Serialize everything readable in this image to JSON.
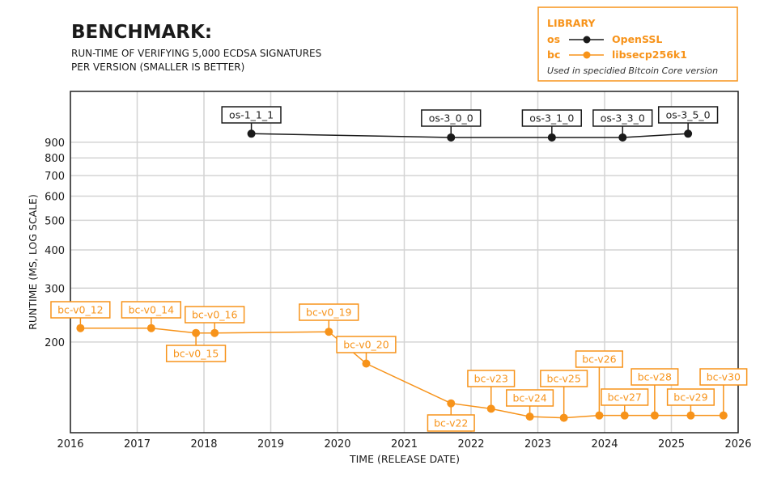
{
  "chart_data": {
    "type": "line",
    "title": "BENCHMARK:",
    "subtitle": [
      "RUN-TIME OF VERIFYING 5,000 ECDSA SIGNATURES",
      "PER VERSION (SMALLER IS BETTER)"
    ],
    "xlabel": "TIME (RELEASE DATE)",
    "ylabel": "RUNTIME (MS, LOG SCALE)",
    "xlim": [
      2016,
      2026
    ],
    "ylim": [
      101,
      1320
    ],
    "yscale": "log",
    "grid": true,
    "x_ticks": [
      "2016",
      "2017",
      "2018",
      "2019",
      "2020",
      "2021",
      "2022",
      "2023",
      "2024",
      "2025",
      "2026"
    ],
    "y_ticks": [
      "200",
      "300",
      "400",
      "500",
      "600",
      "700",
      "800",
      "900"
    ],
    "legend": {
      "position": "top-right",
      "title": "LIBRARY",
      "entries": [
        {
          "key": "os",
          "label": "OpenSSL",
          "color": "#1a1a1a"
        },
        {
          "key": "bc",
          "label": "libsecp256k1",
          "color": "#f7931a"
        }
      ],
      "note": "Used in specidied Bitcoin Core version"
    },
    "series": [
      {
        "name": "OpenSSL",
        "color": "#1a1a1a",
        "points": [
          {
            "label": "os-1_1_1",
            "x": 2018.71,
            "y": 960
          },
          {
            "label": "os-3_0_0",
            "x": 2021.7,
            "y": 933
          },
          {
            "label": "os-3_1_0",
            "x": 2023.21,
            "y": 933
          },
          {
            "label": "os-3_3_0",
            "x": 2024.27,
            "y": 933
          },
          {
            "label": "os-3_5_0",
            "x": 2025.25,
            "y": 960
          }
        ]
      },
      {
        "name": "libsecp256k1",
        "color": "#f7931a",
        "points": [
          {
            "label": "bc-v0_12",
            "x": 2016.15,
            "y": 222
          },
          {
            "label": "bc-v0_14",
            "x": 2017.21,
            "y": 222
          },
          {
            "label": "bc-v0_15",
            "x": 2017.88,
            "y": 214
          },
          {
            "label": "bc-v0_16",
            "x": 2018.16,
            "y": 214
          },
          {
            "label": "bc-v0_19",
            "x": 2019.87,
            "y": 216
          },
          {
            "label": "bc-v0_20",
            "x": 2020.43,
            "y": 170
          },
          {
            "label": "bc-v22",
            "x": 2021.7,
            "y": 126
          },
          {
            "label": "bc-v23",
            "x": 2022.3,
            "y": 121
          },
          {
            "label": "bc-v24",
            "x": 2022.88,
            "y": 114
          },
          {
            "label": "bc-v25",
            "x": 2023.39,
            "y": 113
          },
          {
            "label": "bc-v26",
            "x": 2023.92,
            "y": 115
          },
          {
            "label": "bc-v27",
            "x": 2024.3,
            "y": 115
          },
          {
            "label": "bc-v28",
            "x": 2024.75,
            "y": 115
          },
          {
            "label": "bc-v29",
            "x": 2025.29,
            "y": 115
          },
          {
            "label": "bc-v30",
            "x": 2025.78,
            "y": 115
          }
        ]
      }
    ]
  }
}
